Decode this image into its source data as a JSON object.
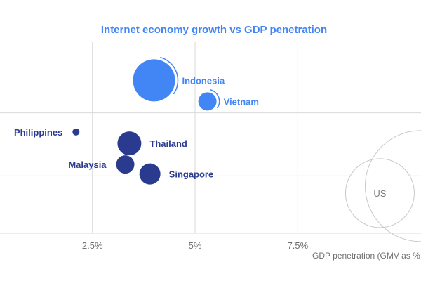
{
  "chart_data": {
    "type": "scatter",
    "title": "Internet economy growth vs GDP penetration",
    "xlabel": "GDP penetration (GMV as % of GDP)",
    "ylabel": "",
    "x_ticks": [
      {
        "value": 2.5,
        "label": "2.5%"
      },
      {
        "value": 5.0,
        "label": "5%"
      },
      {
        "value": 7.5,
        "label": "7.5%"
      }
    ],
    "xlim": [
      0.25,
      10.5
    ],
    "ylim": [
      0,
      100
    ],
    "grid": true,
    "points": [
      {
        "name": "Indonesia",
        "x": 4.0,
        "y": 80,
        "size": 30,
        "color": "#4285f4",
        "has_arc": true
      },
      {
        "name": "Vietnam",
        "x": 5.3,
        "y": 69,
        "size": 13,
        "color": "#4285f4",
        "has_arc": true
      },
      {
        "name": "Philippines",
        "x": 2.1,
        "y": 53,
        "size": 5,
        "color": "#2a3b8f",
        "has_arc": false
      },
      {
        "name": "Thailand",
        "x": 3.4,
        "y": 47,
        "size": 17,
        "color": "#2a3b8f",
        "has_arc": false
      },
      {
        "name": "Malaysia",
        "x": 3.3,
        "y": 36,
        "size": 13,
        "color": "#2a3b8f",
        "has_arc": false
      },
      {
        "name": "Singapore",
        "x": 3.9,
        "y": 31,
        "size": 15,
        "color": "#2a3b8f",
        "has_arc": false
      },
      {
        "name": "US",
        "x": 9.5,
        "y": 21,
        "size": 49,
        "color": "#ffffff",
        "stroke": "#c8c8c8",
        "has_arc": false
      }
    ]
  },
  "colors": {
    "title": "#4285f4",
    "grid": "#d9d9d9",
    "bubble_outline": "#c8c8c8",
    "light_label": "#4285f4",
    "dark_label": "#2a3b8f",
    "neutral_label": "#7a7a7a"
  }
}
